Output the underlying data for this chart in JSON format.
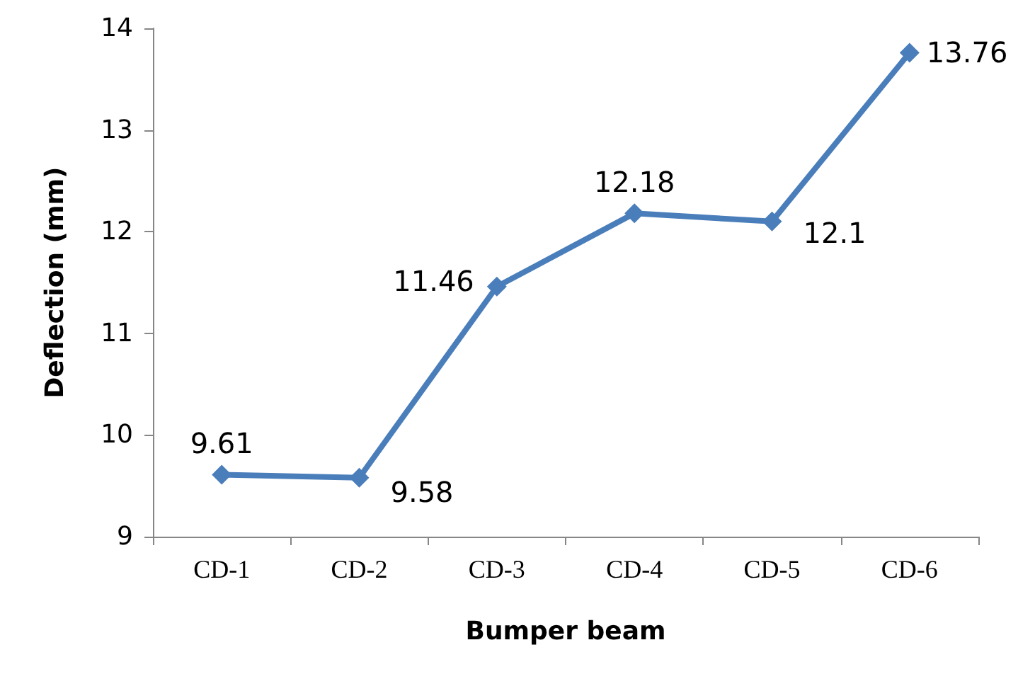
{
  "chart_data": {
    "type": "line",
    "xlabel": "Bumper beam",
    "ylabel": "Deflection (mm)",
    "categories": [
      "CD-1",
      "CD-2",
      "CD-3",
      "CD-4",
      "CD-5",
      "CD-6"
    ],
    "series": [
      {
        "color": "#4a7ebb",
        "values": [
          9.61,
          9.58,
          11.46,
          12.18,
          12.1,
          13.76
        ]
      }
    ],
    "ylim": [
      9,
      14
    ],
    "yticks": [
      9,
      10,
      11,
      12,
      13,
      14
    ],
    "grid": false,
    "marker": "diamond",
    "line_style": "solid",
    "data_labels": true
  }
}
